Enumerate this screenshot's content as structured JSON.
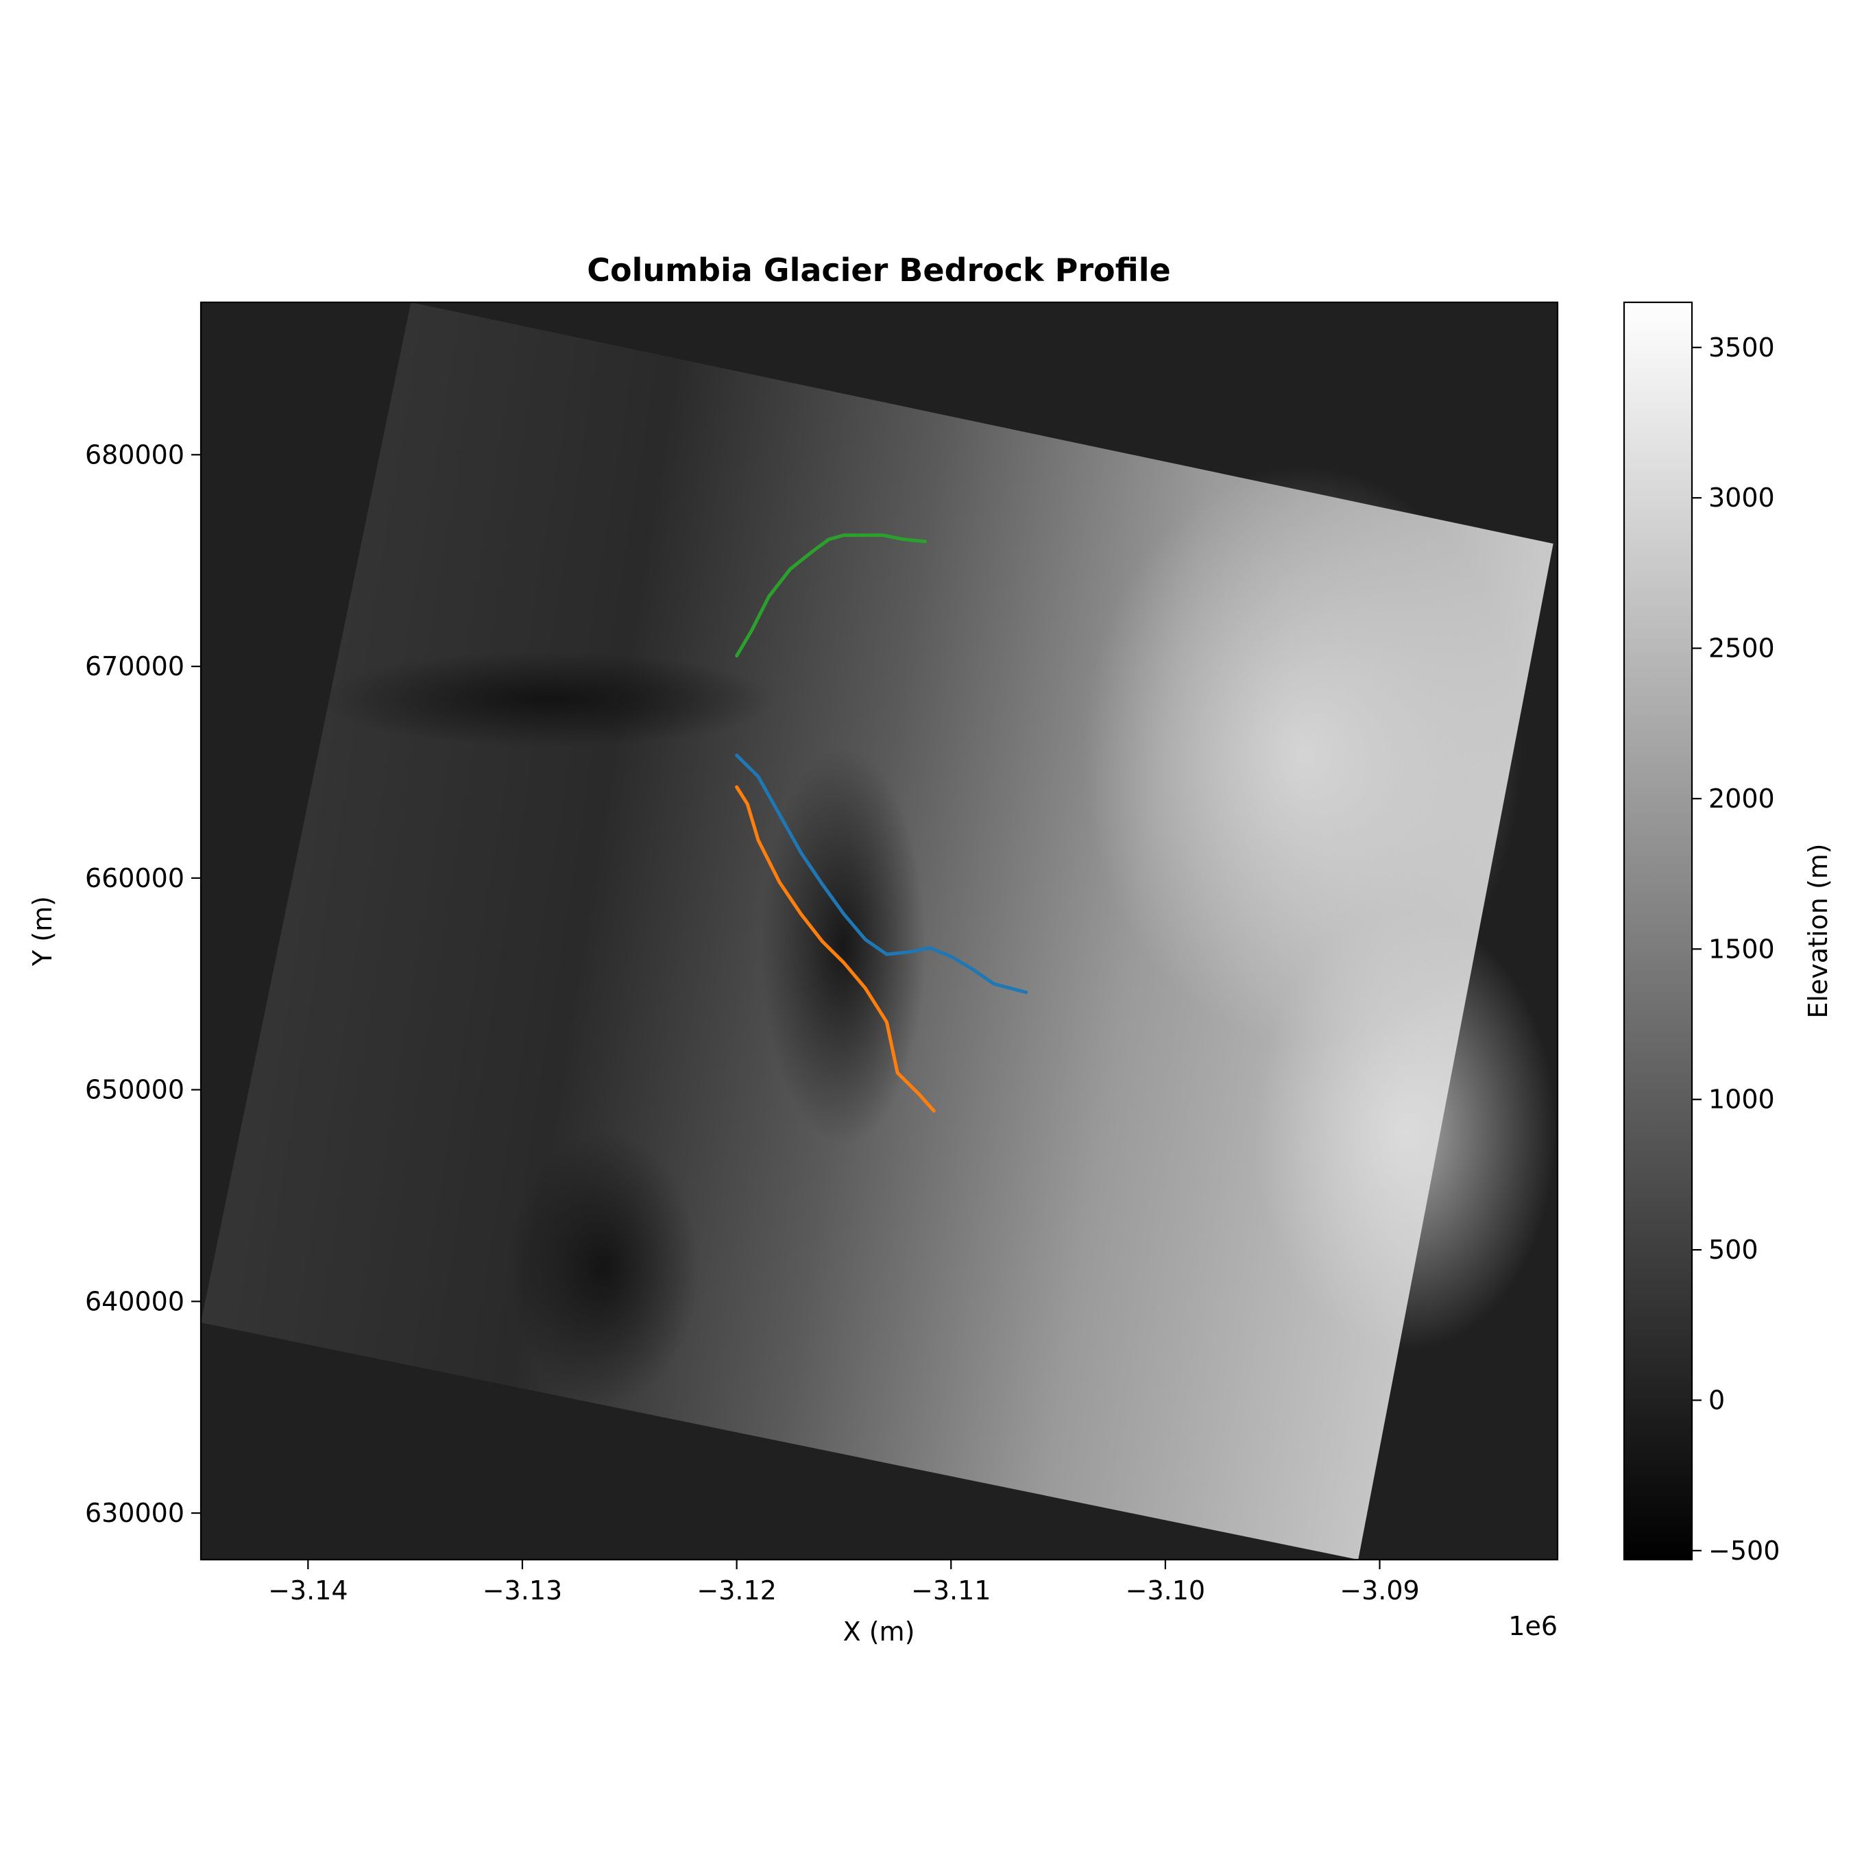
{
  "chart_data": {
    "type": "heatmap",
    "title": "Columbia Glacier Bedrock Profile",
    "xlabel": "X (m)",
    "ylabel": "Y (m)",
    "x_offset_label": "1e6",
    "xlim": [
      -3.145,
      -3.0817
    ],
    "ylim": [
      627800,
      687200
    ],
    "x_ticks": [
      -3.14,
      -3.13,
      -3.12,
      -3.11,
      -3.1,
      -3.09
    ],
    "x_tick_labels": [
      "−3.14",
      "−3.13",
      "−3.12",
      "−3.11",
      "−3.10",
      "−3.09"
    ],
    "y_ticks": [
      630000,
      640000,
      650000,
      660000,
      670000,
      680000
    ],
    "y_tick_labels": [
      "630000",
      "640000",
      "650000",
      "660000",
      "670000",
      "680000"
    ],
    "colorbar": {
      "label": "Elevation (m)",
      "colormap": "gray",
      "range": [
        -530,
        3650
      ],
      "ticks": [
        -500,
        0,
        500,
        1000,
        1500,
        2000,
        2500,
        3000,
        3500
      ],
      "tick_labels": [
        "−500",
        "0",
        "500",
        "1000",
        "1500",
        "2000",
        "2500",
        "3000",
        "3500"
      ]
    },
    "nodata_color": "#202020",
    "raster_footprint": [
      [
        -3.1352,
        687200
      ],
      [
        -3.0819,
        675800
      ],
      [
        -3.091,
        627800
      ],
      [
        -3.145,
        639000
      ]
    ],
    "series": [
      {
        "color": "#1f77b4",
        "x": [
          -3.12,
          -3.119,
          -3.118,
          -3.117,
          -3.116,
          -3.115,
          -3.114,
          -3.113,
          -3.112,
          -3.111,
          -3.11,
          -3.109,
          -3.108,
          -3.1065
        ],
        "y": [
          665800,
          664800,
          663000,
          661200,
          659700,
          658300,
          657100,
          656400,
          656500,
          656700,
          656300,
          655700,
          655000,
          654600
        ]
      },
      {
        "color": "#ff7f0e",
        "x": [
          -3.12,
          -3.1195,
          -3.119,
          -3.118,
          -3.117,
          -3.116,
          -3.115,
          -3.114,
          -3.113,
          -3.1125,
          -3.1115,
          -3.1108
        ],
        "y": [
          664300,
          663500,
          661800,
          659800,
          658300,
          657000,
          656000,
          654800,
          653200,
          650800,
          649800,
          649000
        ]
      },
      {
        "color": "#2ca02c",
        "x": [
          -3.12,
          -3.1193,
          -3.1185,
          -3.1175,
          -3.1165,
          -3.1157,
          -3.115,
          -3.1143,
          -3.1132,
          -3.1122,
          -3.1112
        ],
        "y": [
          670500,
          671700,
          673300,
          674600,
          675400,
          676000,
          676200,
          676200,
          676200,
          676000,
          675900
        ]
      }
    ]
  }
}
